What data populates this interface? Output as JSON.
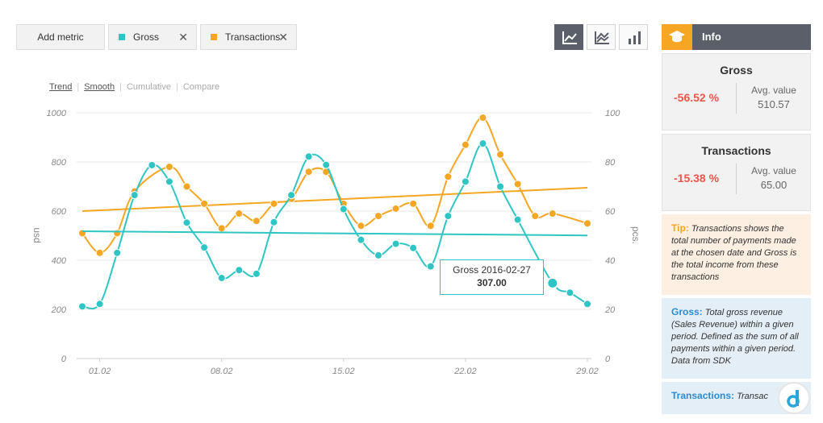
{
  "toolbar": {
    "add_metric": "Add metric",
    "gross_chip": "Gross",
    "transactions_chip": "Transactions",
    "close_glyph": "✕",
    "view_buttons": [
      "line-chart-icon",
      "area-chart-icon",
      "bar-chart-icon"
    ],
    "active_view": "line-chart-icon"
  },
  "modes": [
    "Trend",
    "Smooth",
    "Cumulative",
    "Compare"
  ],
  "colors": {
    "gross": "#2fc5c5",
    "transactions": "#f5a623",
    "accent_dark": "#5a5f69",
    "negative": "#e8574e"
  },
  "tooltip": {
    "label": "Gross 2016-02-27",
    "value": "307.00"
  },
  "info": {
    "title": "Info",
    "icon": "graduation-cap-icon",
    "gross": {
      "name": "Gross",
      "change": "-56.52 %",
      "avg_label": "Avg. value",
      "avg_value": "510.57"
    },
    "transactions": {
      "name": "Transactions",
      "change": "-15.38 %",
      "avg_label": "Avg. value",
      "avg_value": "65.00"
    },
    "tip": {
      "label": "Tip:",
      "text": "Transactions shows the total number of payments made at the chosen date and Gross is the total income from these transactions"
    },
    "gross_note": {
      "label": "Gross:",
      "text": "Total gross revenue (Sales Revenue) within a given period. Defined as the sum of all payments within a given period. Data from SDK"
    },
    "trans_note": {
      "label": "Transactions:",
      "text": "Transac"
    }
  },
  "chart_data": {
    "type": "line",
    "x": [
      "2016-01-31",
      "2016-02-01",
      "2016-02-02",
      "2016-02-03",
      "2016-02-04",
      "2016-02-05",
      "2016-02-06",
      "2016-02-07",
      "2016-02-08",
      "2016-02-09",
      "2016-02-10",
      "2016-02-11",
      "2016-02-12",
      "2016-02-13",
      "2016-02-14",
      "2016-02-15",
      "2016-02-16",
      "2016-02-17",
      "2016-02-18",
      "2016-02-19",
      "2016-02-20",
      "2016-02-21",
      "2016-02-22",
      "2016-02-23",
      "2016-02-24",
      "2016-02-25",
      "2016-02-26",
      "2016-02-27",
      "2016-02-28",
      "2016-02-29"
    ],
    "x_ticks": [
      "01.02",
      "08.02",
      "15.02",
      "22.02",
      "29.02"
    ],
    "y_left_ticks": [
      0,
      200,
      400,
      600,
      800,
      1000
    ],
    "y_right_ticks": [
      0,
      20,
      40,
      60,
      80,
      100
    ],
    "ylabel": "usd",
    "y2label": "pcs.",
    "ylim": [
      0,
      1000
    ],
    "y2lim": [
      0,
      100
    ],
    "grid": "horizontal",
    "series": [
      {
        "name": "Gross",
        "axis": "left",
        "values": [
          212,
          222,
          430,
          665,
          787,
          720,
          553,
          452,
          328,
          360,
          345,
          555,
          665,
          822,
          788,
          608,
          483,
          420,
          467,
          450,
          375,
          580,
          720,
          875,
          700,
          565,
          null,
          307,
          268,
          222
        ],
        "trend": [
          518,
          501
        ]
      },
      {
        "name": "Transactions",
        "axis": "right",
        "values": [
          51,
          43,
          51,
          68,
          null,
          78,
          70,
          63,
          53,
          59,
          56,
          63,
          65,
          76,
          76,
          63,
          54,
          58,
          61,
          63,
          54,
          74,
          87,
          98,
          83,
          71,
          58,
          59,
          null,
          55
        ],
        "trend": [
          60,
          69.5
        ]
      }
    ]
  }
}
